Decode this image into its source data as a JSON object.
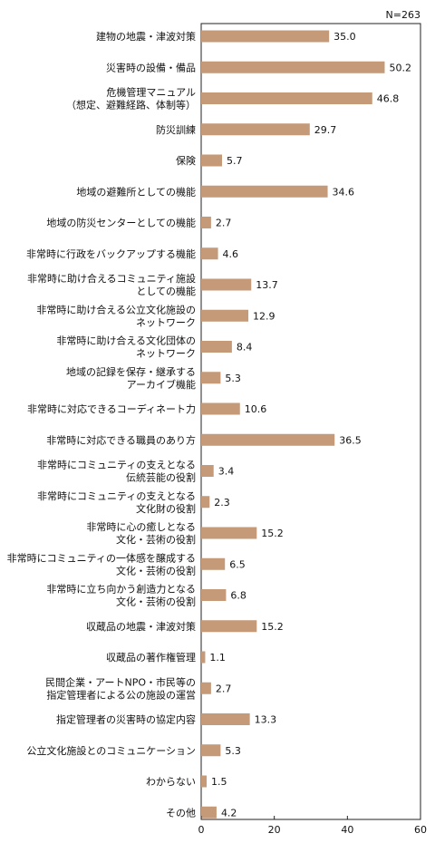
{
  "chart_data": {
    "type": "bar",
    "orientation": "horizontal",
    "note": "N=263",
    "xlim": [
      0,
      60
    ],
    "xticks": [
      0,
      20,
      40,
      60
    ],
    "grid": false,
    "bar_color": "#c49a78",
    "categories": [
      [
        "建物の地震・津波対策"
      ],
      [
        "災害時の設備・備品"
      ],
      [
        "危機管理マニュアル",
        "（想定、避難経路、体制等）"
      ],
      [
        "防災訓練"
      ],
      [
        "保険"
      ],
      [
        "地域の避難所としての機能"
      ],
      [
        "地域の防災センターとしての機能"
      ],
      [
        "非常時に行政をバックアップする機能"
      ],
      [
        "非常時に助け合えるコミュニティ施設",
        "としての機能"
      ],
      [
        "非常時に助け合える公立文化施設の",
        "ネットワーク"
      ],
      [
        "非常時に助け合える文化団体の",
        "ネットワーク"
      ],
      [
        "地域の記録を保存・継承する",
        "アーカイブ機能"
      ],
      [
        "非常時に対応できるコーディネート力"
      ],
      [
        "非常時に対応できる職員のあり方"
      ],
      [
        "非常時にコミュニティの支えとなる",
        "伝統芸能の役割"
      ],
      [
        "非常時にコミュニティの支えとなる",
        "文化財の役割"
      ],
      [
        "非常時に心の癒しとなる",
        "文化・芸術の役割"
      ],
      [
        "非常時にコミュニティの一体感を醸成する",
        "文化・芸術の役割"
      ],
      [
        "非常時に立ち向かう創造力となる",
        "文化・芸術の役割"
      ],
      [
        "収蔵品の地震・津波対策"
      ],
      [
        "収蔵品の著作権管理"
      ],
      [
        "民間企業・アートNPO・市民等の",
        "指定管理者による公の施設の運営"
      ],
      [
        "指定管理者の災害時の協定内容"
      ],
      [
        "公立文化施設とのコミュニケーション"
      ],
      [
        "わからない"
      ],
      [
        "その他"
      ]
    ],
    "values": [
      35.0,
      50.2,
      46.8,
      29.7,
      5.7,
      34.6,
      2.7,
      4.6,
      13.7,
      12.9,
      8.4,
      5.3,
      10.6,
      36.5,
      3.4,
      2.3,
      15.2,
      6.5,
      6.8,
      15.2,
      1.1,
      2.7,
      13.3,
      5.3,
      1.5,
      4.2
    ]
  }
}
